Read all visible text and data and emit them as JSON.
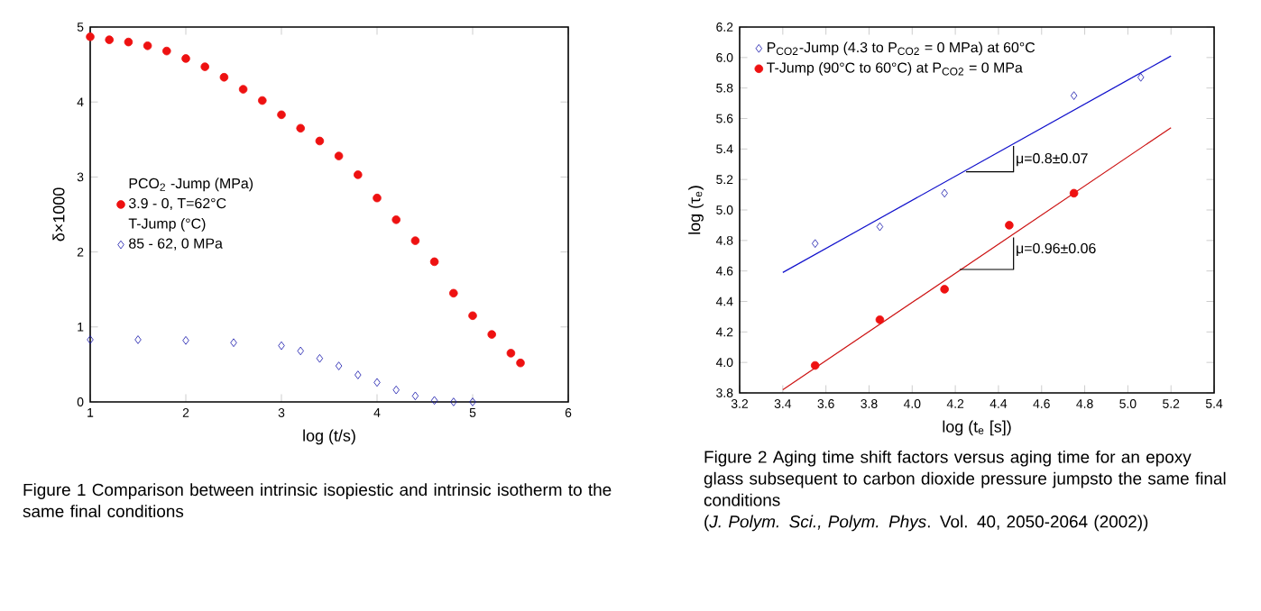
{
  "chart_data": [
    {
      "type": "scatter",
      "xlabel": "log (t/s)",
      "ylabel": "δ×1000",
      "xlim": [
        1,
        6
      ],
      "ylim": [
        0,
        5
      ],
      "xticks": [
        1,
        2,
        3,
        4,
        5,
        6
      ],
      "yticks": [
        0,
        1,
        2,
        3,
        4,
        5
      ],
      "legend": "left",
      "grid": false,
      "annotations": [
        "PCO$_{2}$ -Jump (MPa)",
        "T-Jump (°C)",
        "Figure 1 Comparison between intrinsic isopiestic and intrinsic isotherm to the same final conditions"
      ],
      "series": [
        {
          "name": "3.9 - 0, T=62°C",
          "color": "#ee1111",
          "marker": "circle",
          "x": [
            1.0,
            1.2,
            1.4,
            1.6,
            1.8,
            2.0,
            2.2,
            2.4,
            2.6,
            2.8,
            3.0,
            3.2,
            3.4,
            3.6,
            3.8,
            4.0,
            4.2,
            4.4,
            4.6,
            4.8,
            5.0,
            5.2,
            5.4,
            5.5
          ],
          "values": [
            4.87,
            4.83,
            4.8,
            4.75,
            4.68,
            4.58,
            4.47,
            4.33,
            4.17,
            4.02,
            3.83,
            3.65,
            3.48,
            3.28,
            3.03,
            2.72,
            2.43,
            2.15,
            1.87,
            1.45,
            1.15,
            0.9,
            0.65,
            0.52
          ]
        },
        {
          "name": "85 - 62, 0 MPa",
          "color": "#1111aa",
          "marker": "diamond",
          "x": [
            1.0,
            1.5,
            2.0,
            2.5,
            3.0,
            3.2,
            3.4,
            3.6,
            3.8,
            4.0,
            4.2,
            4.4,
            4.6,
            4.8,
            5.0
          ],
          "values": [
            0.83,
            0.83,
            0.82,
            0.79,
            0.75,
            0.68,
            0.58,
            0.48,
            0.36,
            0.26,
            0.16,
            0.08,
            0.02,
            0.0,
            0.0
          ]
        }
      ]
    },
    {
      "type": "scatter",
      "xlabel": "log (t$_{e}$ [s])",
      "ylabel": "log (τ$_{e}$)",
      "xlim": [
        3.2,
        5.4
      ],
      "ylim": [
        3.8,
        6.2
      ],
      "xticks": [
        3.2,
        3.4,
        3.6,
        3.8,
        {
          "value": 4,
          "label": "4.0"
        },
        4.2,
        4.4,
        4.6,
        4.8,
        {
          "value": 5,
          "label": "5.0"
        },
        5.2,
        5.4
      ],
      "yticks": [
        3.8,
        {
          "value": 4,
          "label": "4.0"
        },
        4.2,
        4.4,
        4.6,
        4.8,
        {
          "value": 5,
          "label": "5.0"
        },
        5.2,
        5.4,
        5.6,
        5.8,
        {
          "value": 6,
          "label": "6.0"
        },
        6.2
      ],
      "legend": "top left",
      "grid": false,
      "annotations": [
        {
          "text": "μ=0.8±0.07",
          "x": 4.47,
          "y": 5.33
        },
        {
          "text": "μ=0.96±0.06",
          "x": 4.47,
          "y": 4.74
        },
        "Figure 2 Aging time shift factors versus aging time for an epoxy glass subsequent to carbon dioxide pressure jumpsto the same final conditions",
        " (*J. Polym. Sci., Polym. Phys*. Vol. 40, 2050-2064 (2002))"
      ],
      "series": [
        {
          "name": "P$_{CO2}$-Jump (4.3 to P$_{CO2}$ = 0 MPa) at 60°C",
          "color": "#1111aa",
          "marker": "diamond",
          "x": [
            3.55,
            3.85,
            4.15,
            4.75,
            5.06
          ],
          "values": [
            4.78,
            4.89,
            5.11,
            5.75,
            5.87
          ]
        },
        {
          "name": "T-Jump (90°C to 60°C) at P$_{CO2}$ = 0 MPa",
          "color": "#ee1111",
          "marker": "circle",
          "x": [
            3.55,
            3.85,
            4.15,
            4.45,
            4.75
          ],
          "values": [
            3.98,
            4.28,
            4.48,
            4.9,
            5.11
          ]
        },
        {
          "type": "line",
          "color": "#1111cc",
          "x": [
            3.4,
            5.2
          ],
          "values": [
            4.59,
            6.01
          ]
        },
        {
          "type": "line",
          "color": "#cc1111",
          "x": [
            3.4,
            5.2
          ],
          "values": [
            3.82,
            5.54
          ]
        },
        {
          "type": "line",
          "color": "#000000",
          "x": [
            4.25,
            4.47,
            4.47
          ],
          "values": [
            5.25,
            5.25,
            5.42
          ]
        },
        {
          "type": "line",
          "color": "#000000",
          "x": [
            4.22,
            4.47,
            4.47
          ],
          "values": [
            4.61,
            4.61,
            4.82
          ]
        }
      ]
    }
  ]
}
